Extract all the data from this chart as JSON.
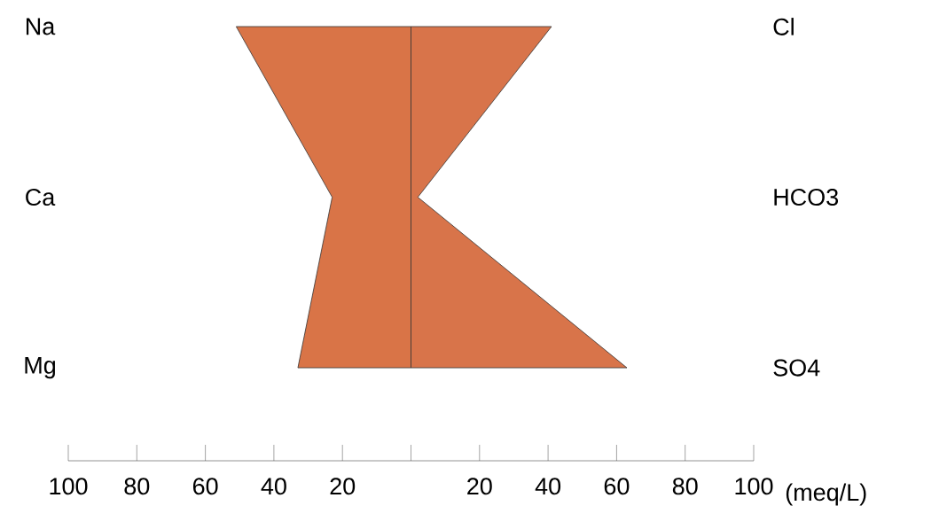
{
  "chart_data": {
    "type": "area",
    "orientation": "horizontal",
    "categories": [
      "Na",
      "Ca",
      "Mg"
    ],
    "y2_categories": [
      "Cl",
      "HCO3",
      "SO4"
    ],
    "series": [
      {
        "color": "#d97447",
        "values": [
          -51,
          -23,
          -33
        ]
      },
      {
        "color": "#d8744a",
        "values": [
          41,
          2,
          63
        ]
      }
    ],
    "xlim": [
      -100,
      100
    ],
    "xticks": [
      {
        "value": -100,
        "label": "100"
      },
      {
        "value": -80,
        "label": "80"
      },
      {
        "value": -60,
        "label": "60"
      },
      {
        "value": -40,
        "label": "40"
      },
      {
        "value": -20,
        "label": "20"
      },
      {
        "value": 0,
        "label": null
      },
      {
        "value": 20,
        "label": "20"
      },
      {
        "value": 40,
        "label": "40"
      },
      {
        "value": 60,
        "label": "60"
      },
      {
        "value": 80,
        "label": "80"
      },
      {
        "value": 100,
        "label": "100"
      }
    ],
    "xlabel": "(meq/L)"
  }
}
